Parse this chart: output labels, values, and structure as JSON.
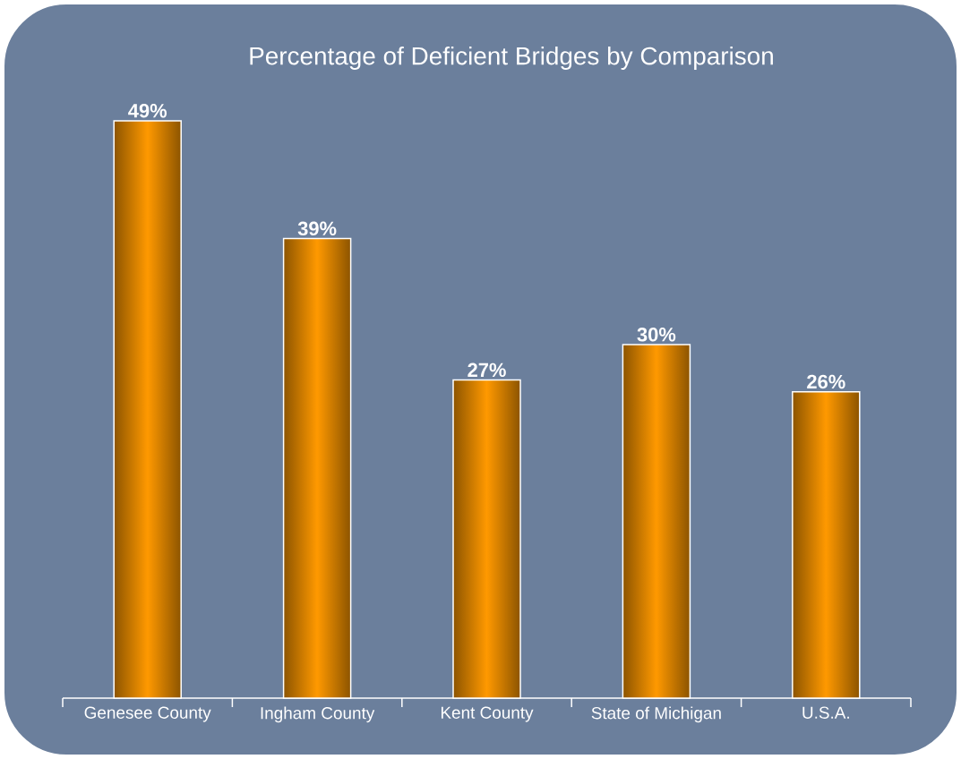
{
  "chart_data": {
    "type": "bar",
    "title": "Percentage of Deficient Bridges by Comparison",
    "categories": [
      "Genesee County",
      "Ingham County",
      "Kent County",
      "State of Michigan",
      "U.S.A."
    ],
    "values": [
      49,
      39,
      27,
      30,
      26
    ],
    "value_labels": [
      "49%",
      "39%",
      "27%",
      "30%",
      "26%"
    ],
    "color": "#ff9900"
  }
}
